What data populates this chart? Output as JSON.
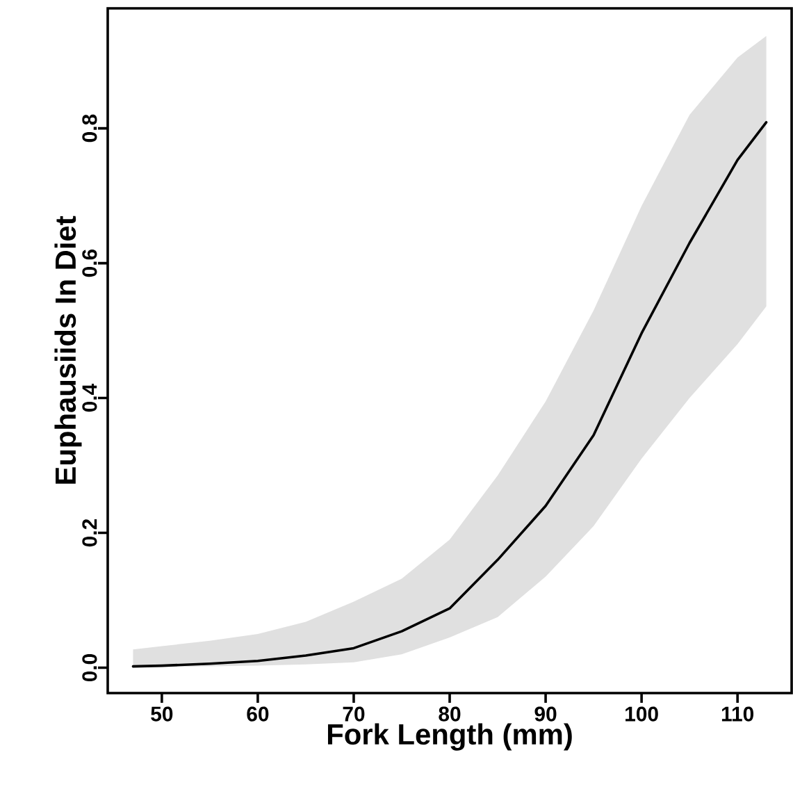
{
  "chart_data": {
    "type": "line",
    "xlabel": "Fork Length (mm)",
    "ylabel": "Euphausiids In Diet",
    "xlim": [
      44.36,
      115.64
    ],
    "ylim": [
      -0.0376,
      0.978
    ],
    "xticks": [
      50,
      60,
      70,
      80,
      90,
      100,
      110
    ],
    "yticks": [
      {
        "value": 0,
        "label": "0.0"
      },
      0.2,
      0.4,
      0.6,
      0.8
    ],
    "grid": false,
    "series": [
      {
        "color": "#000000",
        "x": [
          47,
          50,
          55,
          60,
          65,
          70,
          75,
          80,
          85,
          90,
          95,
          100,
          105,
          110,
          113
        ],
        "values": [
          0.002,
          0.003,
          0.006,
          0.01,
          0.018,
          0.029,
          0.054,
          0.088,
          0.16,
          0.24,
          0.345,
          0.496,
          0.63,
          0.753,
          0.809
        ],
        "lower": [
          0.001,
          0.001,
          0.002,
          0.003,
          0.005,
          0.008,
          0.02,
          0.045,
          0.075,
          0.135,
          0.21,
          0.31,
          0.4,
          0.48,
          0.536
        ],
        "upper": [
          0.027,
          0.032,
          0.04,
          0.05,
          0.068,
          0.098,
          0.132,
          0.19,
          0.285,
          0.395,
          0.53,
          0.685,
          0.82,
          0.905,
          0.937
        ]
      }
    ]
  }
}
